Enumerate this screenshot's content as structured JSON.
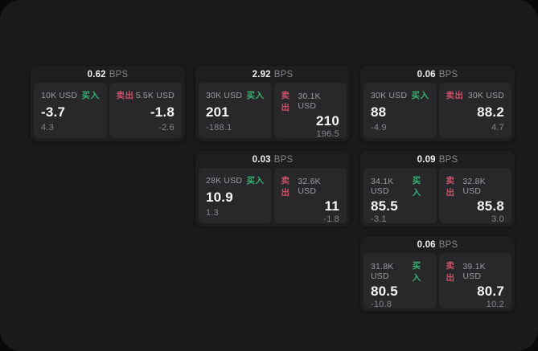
{
  "theme": {
    "buy_green": "#35b273",
    "sell_red": "#c8516a",
    "panel_bg": "#1a1a1b",
    "card_bg": "#1e1e1f",
    "pane_bg": "#28282a"
  },
  "cards": [
    {
      "bps_value": "0.62",
      "bps_unit": "BPS",
      "buy": {
        "amount": "10K USD",
        "side": "买入",
        "main": "-3.7",
        "sub": "4.3"
      },
      "sell": {
        "side": "卖出",
        "amount": "5.5K USD",
        "main": "-1.8",
        "sub": "-2.6"
      }
    },
    {
      "bps_value": "2.92",
      "bps_unit": "BPS",
      "buy": {
        "amount": "30K USD",
        "side": "买入",
        "main": "201",
        "sub": "-188.1"
      },
      "sell": {
        "side": "卖出",
        "amount": "30.1K USD",
        "main": "210",
        "sub": "196.5"
      }
    },
    {
      "bps_value": "0.06",
      "bps_unit": "BPS",
      "buy": {
        "amount": "30K USD",
        "side": "买入",
        "main": "88",
        "sub": "-4.9"
      },
      "sell": {
        "side": "卖出",
        "amount": "30K USD",
        "main": "88.2",
        "sub": "4.7"
      }
    },
    {
      "bps_value": "0.03",
      "bps_unit": "BPS",
      "buy": {
        "amount": "28K USD",
        "side": "买入",
        "main": "10.9",
        "sub": "1.3"
      },
      "sell": {
        "side": "卖出",
        "amount": "32.6K USD",
        "main": "11",
        "sub": "-1.8"
      }
    },
    {
      "bps_value": "0.09",
      "bps_unit": "BPS",
      "buy": {
        "amount": "34.1K USD",
        "side": "买入",
        "main": "85.5",
        "sub": "-3.1"
      },
      "sell": {
        "side": "卖出",
        "amount": "32.8K USD",
        "main": "85.8",
        "sub": "3.0"
      }
    },
    {
      "bps_value": "0.06",
      "bps_unit": "BPS",
      "buy": {
        "amount": "31.8K USD",
        "side": "买入",
        "main": "80.5",
        "sub": "-10.8"
      },
      "sell": {
        "side": "卖出",
        "amount": "39.1K USD",
        "main": "80.7",
        "sub": "10.2"
      }
    }
  ]
}
